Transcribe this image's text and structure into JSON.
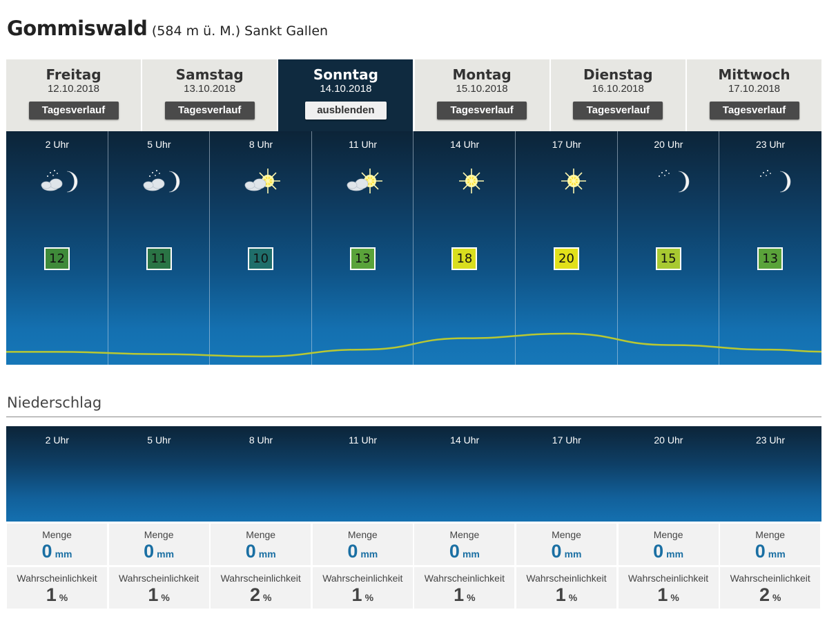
{
  "location": {
    "name": "Gommiswald",
    "detail": "(584 m ü. M.) Sankt Gallen"
  },
  "days": [
    {
      "day": "Freitag",
      "date": "12.10.2018",
      "button": "Tagesverlauf"
    },
    {
      "day": "Samstag",
      "date": "13.10.2018",
      "button": "Tagesverlauf"
    },
    {
      "day": "Sonntag",
      "date": "14.10.2018",
      "button": "ausblenden",
      "active": true
    },
    {
      "day": "Montag",
      "date": "15.10.2018",
      "button": "Tagesverlauf"
    },
    {
      "day": "Dienstag",
      "date": "16.10.2018",
      "button": "Tagesverlauf"
    },
    {
      "day": "Mittwoch",
      "date": "17.10.2018",
      "button": "Tagesverlauf"
    }
  ],
  "forecast": {
    "hours": [
      "2 Uhr",
      "5 Uhr",
      "8 Uhr",
      "11 Uhr",
      "14 Uhr",
      "17 Uhr",
      "20 Uhr",
      "23 Uhr"
    ],
    "icons": [
      "moon-cloud-icon",
      "moon-cloud-icon",
      "sun-cloud-icon",
      "sun-cloud-icon",
      "sun-icon",
      "sun-icon",
      "moon-icon",
      "moon-icon"
    ],
    "temps": [
      "12",
      "11",
      "10",
      "13",
      "18",
      "20",
      "15",
      "13"
    ],
    "temp_colors": [
      "#3f8a3a",
      "#2a7445",
      "#1f6e6a",
      "#5aa33a",
      "#d9de1e",
      "#e2e01a",
      "#a8c931",
      "#5aa33a"
    ]
  },
  "precip": {
    "title": "Niederschlag",
    "hours": [
      "2 Uhr",
      "5 Uhr",
      "8 Uhr",
      "11 Uhr",
      "14 Uhr",
      "17 Uhr",
      "20 Uhr",
      "23 Uhr"
    ],
    "amount_label": "Menge",
    "amount_unit": "mm",
    "amounts": [
      "0",
      "0",
      "0",
      "0",
      "0",
      "0",
      "0",
      "0"
    ],
    "prob_label": "Wahrscheinlichkeit",
    "prob_unit": "%",
    "probs": [
      "1",
      "1",
      "2",
      "1",
      "1",
      "1",
      "1",
      "2"
    ]
  }
}
